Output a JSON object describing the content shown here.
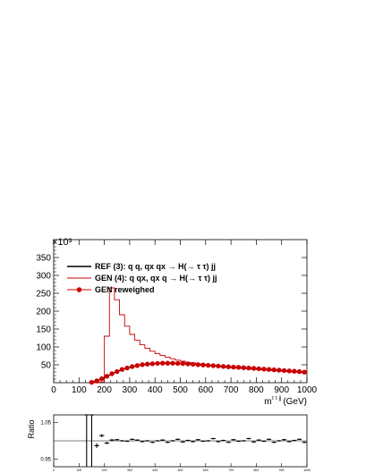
{
  "chart_data": [
    {
      "type": "line",
      "title": "",
      "exponent_label": "×10³",
      "xlabel": "m^{τ τ jj} (GeV)",
      "xlabel_parts": {
        "main": "m",
        "sup": "τ τ jj",
        "unit": "(GeV)"
      },
      "ylabel": "",
      "xlim": [
        0,
        1000
      ],
      "ylim": [
        0,
        400
      ],
      "x_ticks": [
        0,
        100,
        200,
        300,
        400,
        500,
        600,
        700,
        800,
        900,
        1000
      ],
      "y_ticks": [
        50,
        100,
        150,
        200,
        250,
        300,
        350
      ],
      "legend": {
        "placement": "top-left"
      },
      "series": [
        {
          "name": "REF (3): q q, qx qx  → H(→ τ τ) jj",
          "style": "line",
          "color": "#000000",
          "x": [
            140,
            160,
            180,
            200,
            220,
            240,
            260,
            280,
            300,
            320,
            340,
            360,
            380,
            400,
            420,
            440,
            460,
            480,
            500,
            520,
            540,
            560,
            580,
            600,
            620,
            640,
            660,
            680,
            700,
            720,
            740,
            760,
            780,
            800,
            820,
            840,
            860,
            880,
            900,
            920,
            940,
            960,
            980,
            1000
          ],
          "values": [
            0,
            3,
            8,
            14,
            21,
            28,
            34,
            39,
            43,
            46,
            49,
            51,
            52.5,
            53.5,
            54,
            54.5,
            54.5,
            54,
            53.5,
            53,
            52,
            51,
            50,
            49,
            48,
            47,
            46,
            45,
            44,
            43.5,
            42.5,
            41.5,
            40.5,
            39.5,
            38.5,
            37.5,
            36.5,
            35.5,
            34.5,
            33.5,
            32.5,
            31.5,
            30,
            29
          ]
        },
        {
          "name": "GEN (4): q qx, qx q   → H(→ τ τ) jj",
          "style": "step",
          "color": "#cc0000",
          "bin_edges": [
            140,
            160,
            180,
            200,
            220,
            240,
            260,
            280,
            300,
            320,
            340,
            360,
            380,
            400,
            420,
            440,
            460,
            480,
            500,
            520,
            540,
            560,
            580,
            600,
            620,
            640,
            660,
            680,
            700,
            720,
            740,
            760,
            780,
            800,
            820,
            840,
            860,
            880,
            900,
            920,
            940,
            960,
            980,
            1000
          ],
          "values": [
            0,
            0,
            2,
            130,
            265,
            232,
            190,
            158,
            135,
            119,
            106,
            96,
            88,
            81,
            76,
            71,
            67,
            63,
            60,
            57,
            55,
            53,
            51,
            49,
            47.5,
            46,
            44.5,
            43,
            42,
            41,
            40,
            39,
            38,
            37,
            36,
            35,
            34,
            33,
            32,
            31,
            30,
            29,
            28
          ]
        },
        {
          "name": "GEN reweighed",
          "style": "markers",
          "color": "#cc0000",
          "x": [
            150,
            170,
            190,
            210,
            230,
            250,
            270,
            290,
            310,
            330,
            350,
            370,
            390,
            410,
            430,
            450,
            470,
            490,
            510,
            530,
            550,
            570,
            590,
            610,
            630,
            650,
            670,
            690,
            710,
            730,
            750,
            770,
            790,
            810,
            830,
            850,
            870,
            890,
            910,
            930,
            950,
            970,
            990
          ],
          "values": [
            1,
            5,
            11,
            18,
            25,
            31,
            37,
            41,
            45,
            48,
            50.5,
            52,
            53,
            54,
            54.5,
            54.5,
            54.5,
            54,
            53.5,
            52.5,
            51.5,
            50.5,
            49.5,
            48.5,
            47.5,
            46.5,
            45.5,
            44.5,
            43.5,
            43,
            42,
            41,
            40,
            39,
            38,
            37,
            36,
            35,
            34,
            33,
            32,
            31,
            29.5
          ]
        }
      ]
    },
    {
      "type": "scatter",
      "title": "",
      "xlabel": "",
      "ylabel": "Ratio",
      "xlim": [
        0,
        1000
      ],
      "ylim": [
        0.93,
        1.07
      ],
      "y_ticks": [
        0.95,
        1.05
      ],
      "x_ticks": [
        0,
        100,
        200,
        300,
        400,
        500,
        600,
        700,
        800,
        900,
        1000
      ],
      "reference_line": 1.0,
      "series": [
        {
          "name": "",
          "style": "errorbars",
          "color": "#000000",
          "x": [
            130,
            150,
            170,
            190,
            210,
            230,
            250,
            270,
            290,
            310,
            330,
            350,
            370,
            390,
            410,
            430,
            450,
            470,
            490,
            510,
            530,
            550,
            570,
            590,
            610,
            630,
            650,
            670,
            690,
            710,
            730,
            750,
            770,
            790,
            810,
            830,
            850,
            870,
            890,
            910,
            930,
            950,
            970,
            990
          ],
          "values": [
            1.07,
            1.07,
            0.987,
            1.014,
            0.994,
            1.002,
            1.003,
            1.0,
            0.999,
            1.004,
            1.002,
            0.998,
            1.0,
            0.996,
            1.0,
            1.002,
            0.996,
            1.0,
            1.004,
            0.997,
            1.001,
            0.998,
            1.003,
            0.999,
            1.0,
            1.006,
            0.998,
            1.001,
            0.996,
            1.003,
            0.999,
            1.0,
            1.006,
            0.997,
            1.002,
            0.999,
            1.004,
            0.996,
            1.0,
            1.003,
            0.998,
            1.001,
            1.004,
            0.996
          ],
          "errors": [
            0.15,
            0.15,
            0.006,
            0.004,
            0.003,
            0.003,
            0.002,
            0.002,
            0.002,
            0.002,
            0.002,
            0.002,
            0.002,
            0.002,
            0.002,
            0.002,
            0.002,
            0.002,
            0.002,
            0.002,
            0.002,
            0.002,
            0.002,
            0.002,
            0.002,
            0.002,
            0.002,
            0.002,
            0.002,
            0.002,
            0.002,
            0.002,
            0.002,
            0.002,
            0.002,
            0.002,
            0.002,
            0.002,
            0.002,
            0.002,
            0.002,
            0.002,
            0.002,
            0.002
          ]
        }
      ]
    }
  ]
}
